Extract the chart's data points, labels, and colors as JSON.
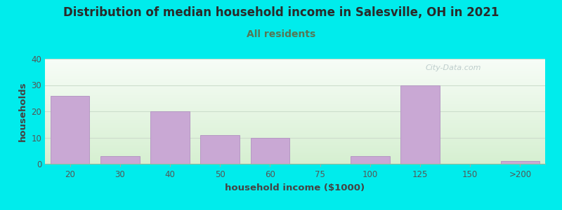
{
  "title": "Distribution of median household income in Salesville, OH in 2021",
  "subtitle": "All residents",
  "xlabel": "household income ($1000)",
  "ylabel": "households",
  "bar_color": "#c9a8d4",
  "bar_edge_color": "#b090c0",
  "background_outer": "#00ecec",
  "background_inner_top_left": "#d8ecd8",
  "background_inner_top_right": "#f5f5f5",
  "background_inner_bottom": "#e8f5e8",
  "ylim": [
    0,
    40
  ],
  "yticks": [
    0,
    10,
    20,
    30,
    40
  ],
  "categories": [
    "20",
    "30",
    "40",
    "50",
    "60",
    "75",
    "100",
    "125",
    "150",
    ">200"
  ],
  "values": [
    26,
    3,
    20,
    11,
    10,
    0,
    3,
    30,
    0,
    1
  ],
  "title_fontsize": 12,
  "subtitle_fontsize": 10,
  "axis_label_fontsize": 9.5,
  "tick_fontsize": 8.5,
  "title_color": "#2a2a2a",
  "subtitle_color": "#557755",
  "axis_label_color": "#444444",
  "tick_color": "#555555",
  "watermark_text": "City-Data.com",
  "watermark_color": "#b8c8c8",
  "grid_color": "#ccddcc",
  "spine_color": "#99bb99"
}
